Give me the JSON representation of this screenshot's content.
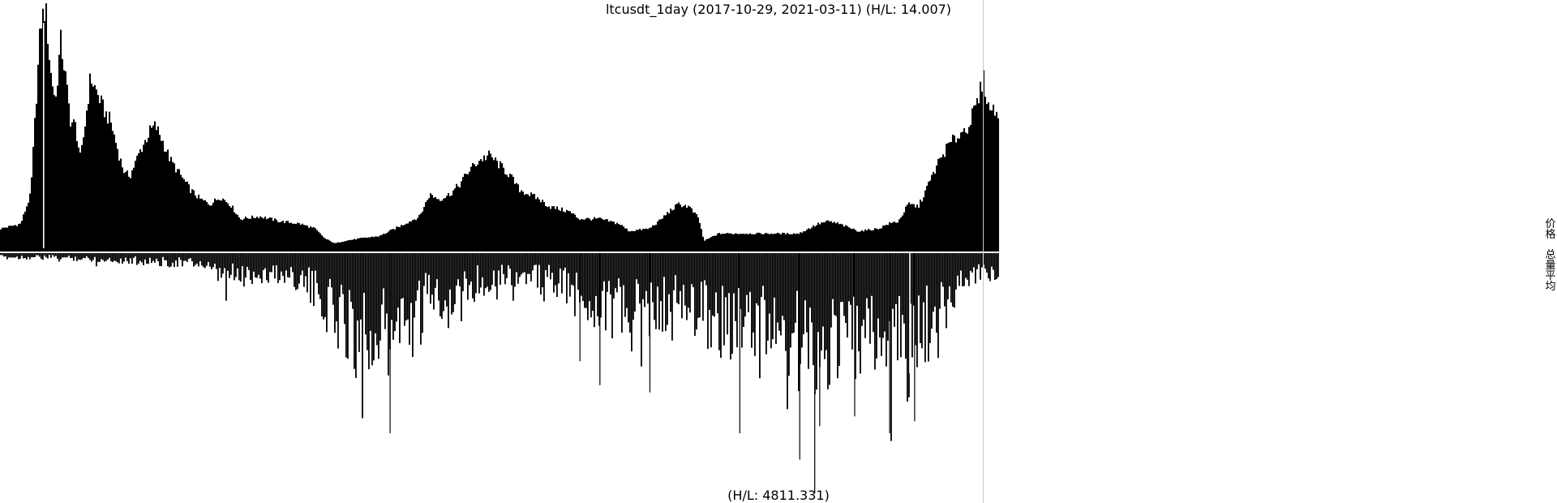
{
  "chart_data": {
    "type": "bar",
    "title": "ltcusdt_1day (2017-10-29, 2021-03-11) (H/L: 14.007)",
    "x_range": [
      "2017-10-29",
      "2021-03-11"
    ],
    "panels": [
      {
        "name": "价格",
        "hl_label": "",
        "direction": "up",
        "hl_ratio": 14.007,
        "profile": [
          [
            0.0,
            0.08
          ],
          [
            0.02,
            0.1
          ],
          [
            0.03,
            0.22
          ],
          [
            0.04,
            0.92
          ],
          [
            0.045,
            0.98
          ],
          [
            0.05,
            0.72
          ],
          [
            0.055,
            0.6
          ],
          [
            0.06,
            0.85
          ],
          [
            0.065,
            0.7
          ],
          [
            0.07,
            0.52
          ],
          [
            0.075,
            0.5
          ],
          [
            0.08,
            0.36
          ],
          [
            0.085,
            0.52
          ],
          [
            0.09,
            0.7
          ],
          [
            0.095,
            0.65
          ],
          [
            0.1,
            0.6
          ],
          [
            0.105,
            0.55
          ],
          [
            0.11,
            0.52
          ],
          [
            0.115,
            0.44
          ],
          [
            0.12,
            0.36
          ],
          [
            0.125,
            0.3
          ],
          [
            0.13,
            0.3
          ],
          [
            0.14,
            0.4
          ],
          [
            0.15,
            0.48
          ],
          [
            0.155,
            0.5
          ],
          [
            0.16,
            0.46
          ],
          [
            0.17,
            0.36
          ],
          [
            0.18,
            0.3
          ],
          [
            0.19,
            0.24
          ],
          [
            0.2,
            0.2
          ],
          [
            0.21,
            0.18
          ],
          [
            0.22,
            0.21
          ],
          [
            0.23,
            0.18
          ],
          [
            0.24,
            0.12
          ],
          [
            0.26,
            0.13
          ],
          [
            0.28,
            0.11
          ],
          [
            0.3,
            0.1
          ],
          [
            0.315,
            0.08
          ],
          [
            0.325,
            0.04
          ],
          [
            0.335,
            0.02
          ],
          [
            0.345,
            0.03
          ],
          [
            0.36,
            0.04
          ],
          [
            0.38,
            0.05
          ],
          [
            0.4,
            0.09
          ],
          [
            0.42,
            0.13
          ],
          [
            0.43,
            0.22
          ],
          [
            0.44,
            0.2
          ],
          [
            0.45,
            0.22
          ],
          [
            0.46,
            0.26
          ],
          [
            0.47,
            0.32
          ],
          [
            0.48,
            0.36
          ],
          [
            0.49,
            0.38
          ],
          [
            0.5,
            0.34
          ],
          [
            0.51,
            0.3
          ],
          [
            0.52,
            0.24
          ],
          [
            0.53,
            0.22
          ],
          [
            0.54,
            0.2
          ],
          [
            0.55,
            0.17
          ],
          [
            0.56,
            0.16
          ],
          [
            0.57,
            0.15
          ],
          [
            0.58,
            0.12
          ],
          [
            0.6,
            0.12
          ],
          [
            0.62,
            0.1
          ],
          [
            0.63,
            0.07
          ],
          [
            0.65,
            0.08
          ],
          [
            0.66,
            0.11
          ],
          [
            0.67,
            0.15
          ],
          [
            0.68,
            0.18
          ],
          [
            0.69,
            0.17
          ],
          [
            0.7,
            0.12
          ],
          [
            0.705,
            0.03
          ],
          [
            0.72,
            0.06
          ],
          [
            0.75,
            0.06
          ],
          [
            0.78,
            0.06
          ],
          [
            0.8,
            0.06
          ],
          [
            0.82,
            0.1
          ],
          [
            0.83,
            0.11
          ],
          [
            0.84,
            0.1
          ],
          [
            0.86,
            0.07
          ],
          [
            0.88,
            0.08
          ],
          [
            0.89,
            0.1
          ],
          [
            0.9,
            0.11
          ],
          [
            0.91,
            0.18
          ],
          [
            0.92,
            0.17
          ],
          [
            0.93,
            0.26
          ],
          [
            0.94,
            0.35
          ],
          [
            0.95,
            0.42
          ],
          [
            0.96,
            0.46
          ],
          [
            0.97,
            0.5
          ],
          [
            0.98,
            0.6
          ],
          [
            0.985,
            0.7
          ],
          [
            0.99,
            0.58
          ],
          [
            1.0,
            0.55
          ]
        ],
        "spikes": [
          [
            0.043,
            -1
          ]
        ]
      },
      {
        "name": "总量平均",
        "hl_label": "(H/L: 4811.331)",
        "direction": "down",
        "hl_ratio": 4811.331,
        "profile": [
          [
            0.0,
            0.02
          ],
          [
            0.05,
            0.02
          ],
          [
            0.1,
            0.03
          ],
          [
            0.15,
            0.04
          ],
          [
            0.2,
            0.05
          ],
          [
            0.22,
            0.12
          ],
          [
            0.25,
            0.1
          ],
          [
            0.28,
            0.1
          ],
          [
            0.3,
            0.12
          ],
          [
            0.32,
            0.22
          ],
          [
            0.34,
            0.3
          ],
          [
            0.36,
            0.38
          ],
          [
            0.38,
            0.34
          ],
          [
            0.4,
            0.36
          ],
          [
            0.42,
            0.32
          ],
          [
            0.43,
            0.18
          ],
          [
            0.45,
            0.22
          ],
          [
            0.47,
            0.16
          ],
          [
            0.5,
            0.1
          ],
          [
            0.53,
            0.12
          ],
          [
            0.56,
            0.14
          ],
          [
            0.58,
            0.22
          ],
          [
            0.6,
            0.24
          ],
          [
            0.62,
            0.28
          ],
          [
            0.64,
            0.3
          ],
          [
            0.66,
            0.26
          ],
          [
            0.68,
            0.24
          ],
          [
            0.7,
            0.28
          ],
          [
            0.72,
            0.32
          ],
          [
            0.74,
            0.36
          ],
          [
            0.76,
            0.34
          ],
          [
            0.78,
            0.36
          ],
          [
            0.8,
            0.44
          ],
          [
            0.82,
            0.46
          ],
          [
            0.84,
            0.4
          ],
          [
            0.86,
            0.42
          ],
          [
            0.88,
            0.4
          ],
          [
            0.9,
            0.44
          ],
          [
            0.91,
            0.48
          ],
          [
            0.92,
            0.44
          ],
          [
            0.93,
            0.36
          ],
          [
            0.94,
            0.3
          ],
          [
            0.95,
            0.22
          ],
          [
            0.96,
            0.14
          ],
          [
            0.98,
            0.1
          ],
          [
            1.0,
            0.08
          ]
        ],
        "spikes": [
          [
            0.39,
            0.75
          ],
          [
            0.58,
            0.45
          ],
          [
            0.6,
            0.55
          ],
          [
            0.65,
            0.58
          ],
          [
            0.74,
            0.75
          ],
          [
            0.8,
            0.86
          ],
          [
            0.815,
            1.0
          ],
          [
            0.82,
            0.72
          ],
          [
            0.855,
            0.68
          ],
          [
            0.89,
            0.75
          ],
          [
            0.91,
            -1
          ],
          [
            0.915,
            0.7
          ]
        ]
      }
    ],
    "legend": [
      "价格",
      "总量平均"
    ],
    "legend_placement": "right"
  }
}
